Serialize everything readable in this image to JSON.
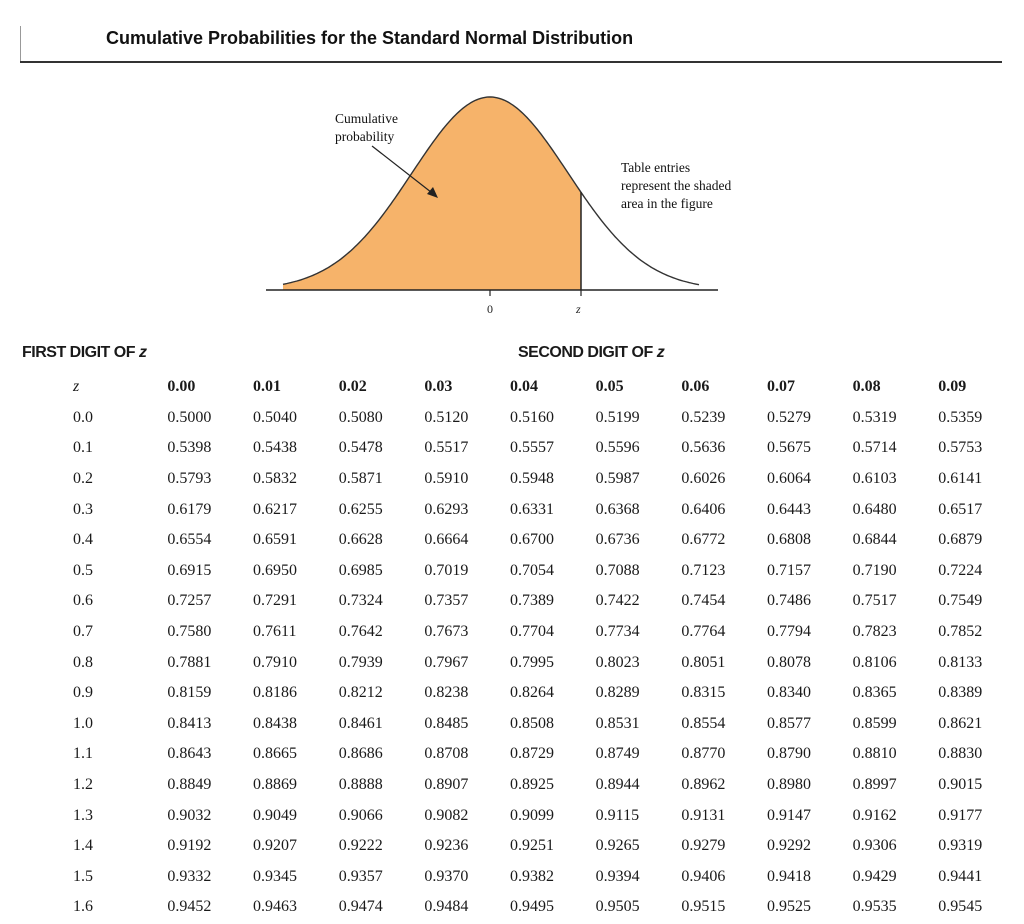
{
  "title": "Cumulative Probabilities for the Standard Normal Distribution",
  "figure": {
    "curve_label": [
      "Cumulative",
      "probability"
    ],
    "note": [
      "Table entries",
      "represent the shaded",
      "area in the figure"
    ],
    "axis_zero": "0",
    "axis_z": "z",
    "shade_color": "#f6b36a"
  },
  "headers": {
    "first_digit": "FIRST DIGIT OF",
    "second_digit": "SECOND DIGIT OF",
    "z_symbol": "z"
  },
  "table": {
    "columns": [
      "0.00",
      "0.01",
      "0.02",
      "0.03",
      "0.04",
      "0.05",
      "0.06",
      "0.07",
      "0.08",
      "0.09"
    ],
    "rows": [
      {
        "z": "0.0",
        "values": [
          "0.5000",
          "0.5040",
          "0.5080",
          "0.5120",
          "0.5160",
          "0.5199",
          "0.5239",
          "0.5279",
          "0.5319",
          "0.5359"
        ]
      },
      {
        "z": "0.1",
        "values": [
          "0.5398",
          "0.5438",
          "0.5478",
          "0.5517",
          "0.5557",
          "0.5596",
          "0.5636",
          "0.5675",
          "0.5714",
          "0.5753"
        ]
      },
      {
        "z": "0.2",
        "values": [
          "0.5793",
          "0.5832",
          "0.5871",
          "0.5910",
          "0.5948",
          "0.5987",
          "0.6026",
          "0.6064",
          "0.6103",
          "0.6141"
        ]
      },
      {
        "z": "0.3",
        "values": [
          "0.6179",
          "0.6217",
          "0.6255",
          "0.6293",
          "0.6331",
          "0.6368",
          "0.6406",
          "0.6443",
          "0.6480",
          "0.6517"
        ]
      },
      {
        "z": "0.4",
        "values": [
          "0.6554",
          "0.6591",
          "0.6628",
          "0.6664",
          "0.6700",
          "0.6736",
          "0.6772",
          "0.6808",
          "0.6844",
          "0.6879"
        ]
      },
      {
        "z": "0.5",
        "values": [
          "0.6915",
          "0.6950",
          "0.6985",
          "0.7019",
          "0.7054",
          "0.7088",
          "0.7123",
          "0.7157",
          "0.7190",
          "0.7224"
        ]
      },
      {
        "z": "0.6",
        "values": [
          "0.7257",
          "0.7291",
          "0.7324",
          "0.7357",
          "0.7389",
          "0.7422",
          "0.7454",
          "0.7486",
          "0.7517",
          "0.7549"
        ]
      },
      {
        "z": "0.7",
        "values": [
          "0.7580",
          "0.7611",
          "0.7642",
          "0.7673",
          "0.7704",
          "0.7734",
          "0.7764",
          "0.7794",
          "0.7823",
          "0.7852"
        ]
      },
      {
        "z": "0.8",
        "values": [
          "0.7881",
          "0.7910",
          "0.7939",
          "0.7967",
          "0.7995",
          "0.8023",
          "0.8051",
          "0.8078",
          "0.8106",
          "0.8133"
        ]
      },
      {
        "z": "0.9",
        "values": [
          "0.8159",
          "0.8186",
          "0.8212",
          "0.8238",
          "0.8264",
          "0.8289",
          "0.8315",
          "0.8340",
          "0.8365",
          "0.8389"
        ]
      },
      {
        "z": "1.0",
        "values": [
          "0.8413",
          "0.8438",
          "0.8461",
          "0.8485",
          "0.8508",
          "0.8531",
          "0.8554",
          "0.8577",
          "0.8599",
          "0.8621"
        ]
      },
      {
        "z": "1.1",
        "values": [
          "0.8643",
          "0.8665",
          "0.8686",
          "0.8708",
          "0.8729",
          "0.8749",
          "0.8770",
          "0.8790",
          "0.8810",
          "0.8830"
        ]
      },
      {
        "z": "1.2",
        "values": [
          "0.8849",
          "0.8869",
          "0.8888",
          "0.8907",
          "0.8925",
          "0.8944",
          "0.8962",
          "0.8980",
          "0.8997",
          "0.9015"
        ]
      },
      {
        "z": "1.3",
        "values": [
          "0.9032",
          "0.9049",
          "0.9066",
          "0.9082",
          "0.9099",
          "0.9115",
          "0.9131",
          "0.9147",
          "0.9162",
          "0.9177"
        ]
      },
      {
        "z": "1.4",
        "values": [
          "0.9192",
          "0.9207",
          "0.9222",
          "0.9236",
          "0.9251",
          "0.9265",
          "0.9279",
          "0.9292",
          "0.9306",
          "0.9319"
        ]
      },
      {
        "z": "1.5",
        "values": [
          "0.9332",
          "0.9345",
          "0.9357",
          "0.9370",
          "0.9382",
          "0.9394",
          "0.9406",
          "0.9418",
          "0.9429",
          "0.9441"
        ]
      },
      {
        "z": "1.6",
        "values": [
          "0.9452",
          "0.9463",
          "0.9474",
          "0.9484",
          "0.9495",
          "0.9505",
          "0.9515",
          "0.9525",
          "0.9535",
          "0.9545"
        ]
      }
    ]
  }
}
